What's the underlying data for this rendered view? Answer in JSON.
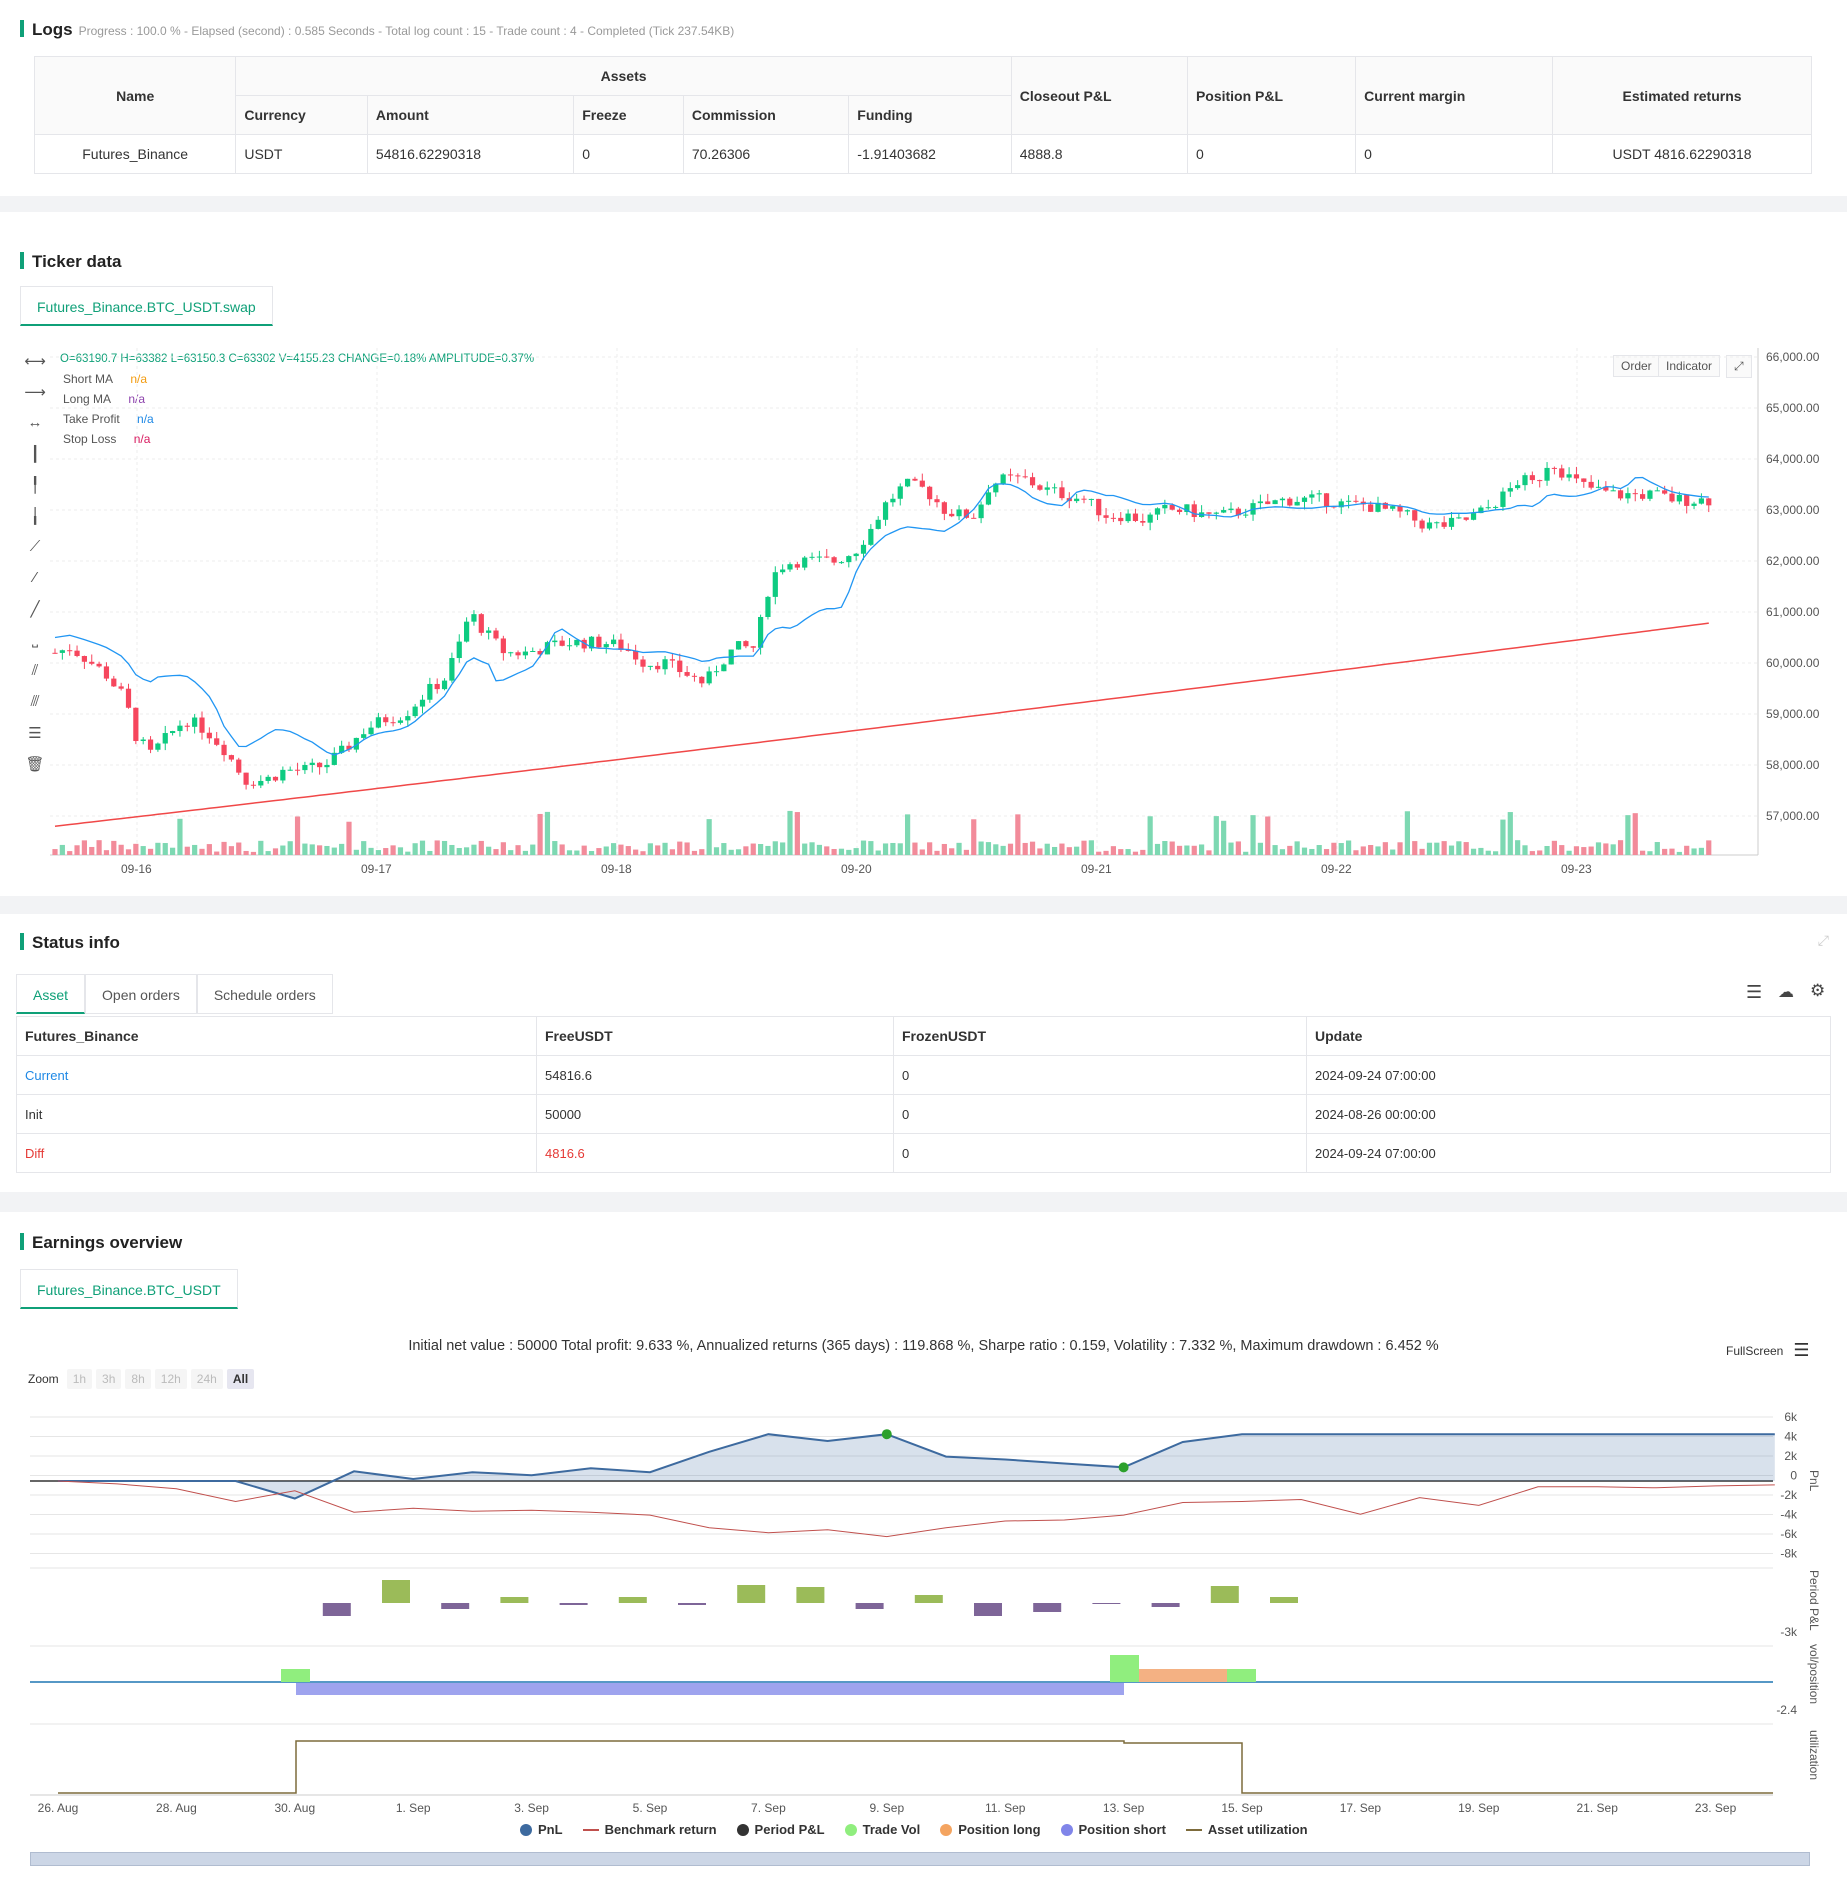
{
  "logs": {
    "title": "Logs",
    "progress": "Progress : 100.0 % - Elapsed (second) : 0.585  Seconds - Total log count : 15 - Trade count : 4 - Completed (Tick 237.54KB)",
    "table": {
      "name_header": "Name",
      "assets_header": "Assets",
      "sub_headers": [
        "Currency",
        "Amount",
        "Freeze",
        "Commission",
        "Funding"
      ],
      "other_headers": [
        "Closeout P&L",
        "Position P&L",
        "Current margin",
        "Estimated returns"
      ],
      "row": {
        "name": "Futures_Binance",
        "currency": "USDT",
        "amount": "54816.62290318",
        "freeze": "0",
        "commission": "70.26306",
        "funding": "-1.91403682",
        "closeout": "4888.8",
        "position": "0",
        "margin": "0",
        "estimated": "USDT 4816.62290318"
      }
    }
  },
  "ticker": {
    "title": "Ticker data",
    "tab": "Futures_Binance.BTC_USDT.swap",
    "ohlc": "O=63190.7 H=63382 L=63150.3 C=63302 V=4155.23 CHANGE=0.18% AMPLITUDE=0.37%",
    "legend": [
      {
        "label": "Short MA",
        "value": "n/a",
        "color": "#f39c12"
      },
      {
        "label": "Long MA",
        "value": "n/a",
        "color": "#8e44ad"
      },
      {
        "label": "Take Profit",
        "value": "n/a",
        "color": "#1e88e5"
      },
      {
        "label": "Stop Loss",
        "value": "n/a",
        "color": "#d81b60"
      }
    ],
    "buttons": {
      "order": "Order",
      "indicator": "Indicator"
    },
    "price_ticks": [
      "66,000.00",
      "65,000.00",
      "64,000.00",
      "63,000.00",
      "62,000.00",
      "61,000.00",
      "60,000.00",
      "59,000.00",
      "58,000.00",
      "57,000.00"
    ],
    "date_ticks": [
      "09-16",
      "09-17",
      "09-18",
      "09-20",
      "09-21",
      "09-22",
      "09-23"
    ]
  },
  "status": {
    "title": "Status info",
    "tabs": [
      "Asset",
      "Open orders",
      "Schedule orders"
    ],
    "headers": [
      "Futures_Binance",
      "FreeUSDT",
      "FrozenUSDT",
      "Update"
    ],
    "rows": [
      {
        "label": "Current",
        "free": "54816.6",
        "frozen": "0",
        "update": "2024-09-24 07:00:00",
        "color": "#1e88e5"
      },
      {
        "label": "Init",
        "free": "50000",
        "frozen": "0",
        "update": "2024-08-26 00:00:00",
        "color": "#333333"
      },
      {
        "label": "Diff",
        "free": "4816.6",
        "frozen": "0",
        "update": "2024-09-24 07:00:00",
        "color": "#e53935"
      }
    ]
  },
  "earnings": {
    "title": "Earnings overview",
    "tab": "Futures_Binance.BTC_USDT",
    "summary": "Initial net value : 50000 Total profit: 9.633 %, Annualized returns (365 days) : 119.868 %, Sharpe ratio : 0.159, Volatility : 7.332 %, Maximum drawdown : 6.452 %",
    "fullscreen": "FullScreen",
    "zoom_label": "Zoom",
    "zoom_options": [
      "1h",
      "3h",
      "8h",
      "12h",
      "24h",
      "All"
    ],
    "pnl_ticks": [
      "6k",
      "4k",
      "2k",
      "0",
      "-2k",
      "-4k",
      "-6k",
      "-8k"
    ],
    "axis_labels": {
      "pnl": "PnL",
      "period": "Period P&L",
      "vol": "vol/position",
      "util": "utilization"
    },
    "period_tick": "-3k",
    "vol_tick": "-2.4",
    "date_ticks": [
      "26. Aug",
      "28. Aug",
      "30. Aug",
      "1. Sep",
      "3. Sep",
      "5. Sep",
      "7. Sep",
      "9. Sep",
      "11. Sep",
      "13. Sep",
      "15. Sep",
      "17. Sep",
      "19. Sep",
      "21. Sep",
      "23. Sep"
    ],
    "legend": [
      {
        "label": "PnL",
        "color": "#3d6a9f",
        "kind": "dot"
      },
      {
        "label": "Benchmark return",
        "color": "#c0504d",
        "kind": "line"
      },
      {
        "label": "Period P&L",
        "color": "#333333",
        "kind": "dot"
      },
      {
        "label": "Trade Vol",
        "color": "#90ee7e",
        "kind": "dot"
      },
      {
        "label": "Position long",
        "color": "#f4a460",
        "kind": "dot"
      },
      {
        "label": "Position short",
        "color": "#8085e9",
        "kind": "dot"
      },
      {
        "label": "Asset utilization",
        "color": "#7d6b3b",
        "kind": "line"
      }
    ],
    "pnl_series": [
      0,
      0,
      0,
      0,
      -1800,
      1000,
      200,
      900,
      600,
      1300,
      900,
      3000,
      4800,
      4100,
      4800,
      2500,
      2200,
      1800,
      1400,
      4000,
      4800,
      4800,
      4800,
      4800,
      4800,
      4800,
      4800,
      4800,
      4800,
      4800
    ],
    "benchmark_series": [
      0,
      -300,
      -800,
      -2100,
      -1000,
      -3200,
      -2800,
      -3100,
      -3000,
      -3200,
      -3500,
      -4800,
      -5300,
      -5000,
      -5700,
      -4800,
      -4100,
      -4000,
      -3500,
      -2200,
      -2100,
      -1900,
      -3400,
      -1700,
      -2500,
      -600,
      -600,
      -700,
      -500,
      -400
    ]
  }
}
